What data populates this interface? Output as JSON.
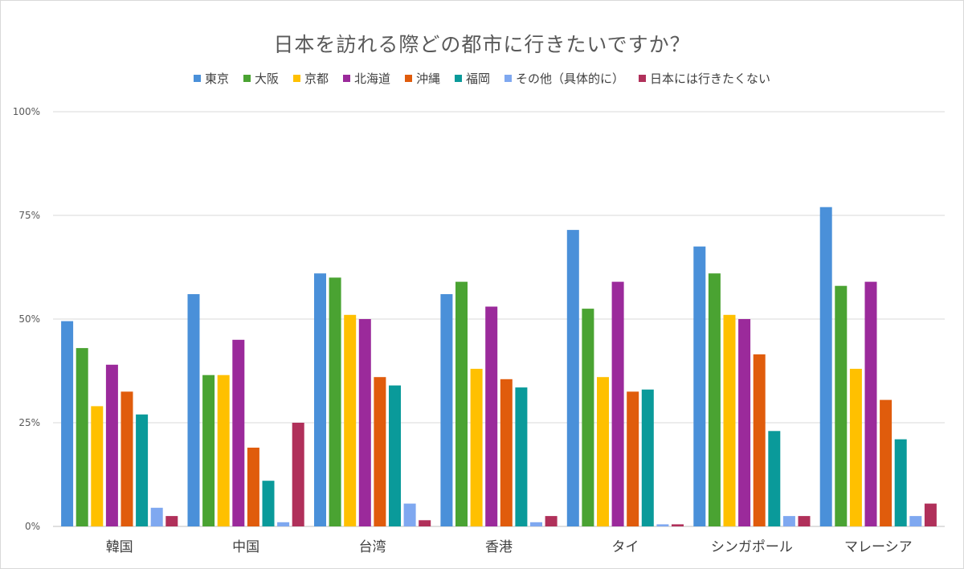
{
  "chart_data": {
    "type": "bar",
    "title": "日本を訪れる際どの都市に行きたいですか？",
    "categories": [
      "韓国",
      "中国",
      "台湾",
      "香港",
      "タイ",
      "シンガポール",
      "マレーシア"
    ],
    "series": [
      {
        "name": "東京",
        "color": "#4a90d9",
        "values": [
          49.5,
          56,
          61,
          56,
          71.5,
          67.5,
          77
        ]
      },
      {
        "name": "大阪",
        "color": "#4aa332",
        "values": [
          43,
          36.5,
          60,
          59,
          52.5,
          61,
          58
        ]
      },
      {
        "name": "京都",
        "color": "#ffc000",
        "values": [
          29,
          36.5,
          51,
          38,
          36,
          51,
          38
        ]
      },
      {
        "name": "北海道",
        "color": "#9b2a9b",
        "values": [
          39,
          45,
          50,
          53,
          59,
          50,
          59
        ]
      },
      {
        "name": "沖縄",
        "color": "#e05c0c",
        "values": [
          32.5,
          19,
          36,
          35.5,
          32.5,
          41.5,
          30.5
        ]
      },
      {
        "name": "福岡",
        "color": "#0a9a9a",
        "values": [
          27,
          11,
          34,
          33.5,
          33,
          23,
          21
        ]
      },
      {
        "name": "その他（具体的に）",
        "color": "#7fa8f0",
        "values": [
          4.5,
          1,
          5.5,
          1,
          0.5,
          2.5,
          2.5
        ]
      },
      {
        "name": "日本には行きたくない",
        "color": "#b0305a",
        "values": [
          2.5,
          25,
          1.5,
          2.5,
          0.5,
          2.5,
          5.5
        ]
      }
    ],
    "yticks": [
      "0%",
      "25%",
      "50%",
      "75%",
      "100%"
    ],
    "ylim": [
      0,
      100
    ],
    "grid": true,
    "legend_position": "top"
  }
}
